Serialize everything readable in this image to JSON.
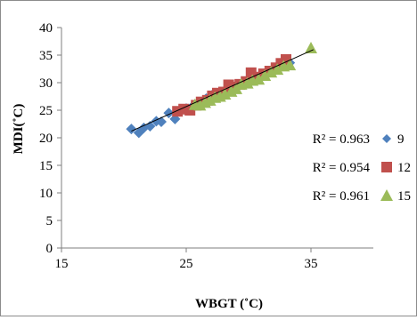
{
  "chart_data": {
    "type": "scatter",
    "xlabel": "WBGT (˚C)",
    "ylabel": "MDI(˚C)",
    "xlim": [
      15,
      40
    ],
    "ylim": [
      0,
      40
    ],
    "x_ticks": [
      "15",
      "25",
      "35"
    ],
    "x_tick_values": [
      15,
      25,
      35
    ],
    "y_ticks": [
      "0",
      "5",
      "10",
      "15",
      "20",
      "25",
      "30",
      "35",
      "40"
    ],
    "y_tick_values": [
      0,
      5,
      10,
      15,
      20,
      25,
      30,
      35,
      40
    ],
    "grid": false,
    "legend_position": "right",
    "trendline": {
      "x": [
        20.6,
        35.2
      ],
      "y": [
        21.2,
        36.0
      ],
      "color": "#000000"
    },
    "series": [
      {
        "name": "9",
        "marker": "diamond",
        "color": "#4f81bd",
        "r2_label": "R² = 0.963",
        "points": [
          [
            20.6,
            21.6
          ],
          [
            21.2,
            20.9
          ],
          [
            21.6,
            21.8
          ],
          [
            22.1,
            22.1
          ],
          [
            22.6,
            23.0
          ],
          [
            23.0,
            22.9
          ],
          [
            23.6,
            24.5
          ],
          [
            24.1,
            23.4
          ],
          [
            24.6,
            25.0
          ],
          [
            25.0,
            25.3
          ],
          [
            25.5,
            25.7
          ],
          [
            26.0,
            26.2
          ],
          [
            26.6,
            27.1
          ],
          [
            27.1,
            27.8
          ],
          [
            27.6,
            27.6
          ],
          [
            28.2,
            28.6
          ],
          [
            28.7,
            29.0
          ],
          [
            29.3,
            29.6
          ],
          [
            29.8,
            30.1
          ],
          [
            30.4,
            30.8
          ],
          [
            31.0,
            31.3
          ],
          [
            31.6,
            31.9
          ],
          [
            32.2,
            32.4
          ],
          [
            32.8,
            33.1
          ],
          [
            33.3,
            33.6
          ]
        ]
      },
      {
        "name": "12",
        "marker": "square",
        "color": "#c0504d",
        "r2_label": "R² = 0.954",
        "points": [
          [
            24.3,
            24.8
          ],
          [
            24.8,
            25.2
          ],
          [
            25.3,
            25.0
          ],
          [
            25.8,
            25.9
          ],
          [
            26.2,
            26.5
          ],
          [
            26.7,
            26.8
          ],
          [
            27.1,
            27.6
          ],
          [
            27.5,
            28.1
          ],
          [
            28.0,
            28.3
          ],
          [
            28.4,
            29.6
          ],
          [
            28.8,
            29.2
          ],
          [
            29.3,
            29.7
          ],
          [
            29.8,
            30.2
          ],
          [
            30.2,
            31.8
          ],
          [
            30.7,
            31.0
          ],
          [
            31.2,
            31.6
          ],
          [
            31.7,
            32.1
          ],
          [
            32.2,
            32.7
          ],
          [
            32.6,
            33.5
          ],
          [
            33.0,
            34.2
          ]
        ]
      },
      {
        "name": "15",
        "marker": "triangle",
        "color": "#9bbb59",
        "r2_label": "R² = 0.961",
        "points": [
          [
            25.7,
            26.0
          ],
          [
            26.1,
            25.9
          ],
          [
            26.5,
            26.4
          ],
          [
            26.9,
            26.8
          ],
          [
            27.3,
            27.3
          ],
          [
            27.7,
            27.5
          ],
          [
            28.1,
            27.9
          ],
          [
            28.6,
            28.4
          ],
          [
            29.0,
            28.9
          ],
          [
            29.4,
            29.7
          ],
          [
            29.9,
            29.9
          ],
          [
            30.3,
            30.4
          ],
          [
            30.8,
            30.6
          ],
          [
            31.3,
            31.3
          ],
          [
            31.8,
            31.9
          ],
          [
            32.3,
            32.4
          ],
          [
            32.8,
            33.0
          ],
          [
            33.3,
            33.2
          ],
          [
            35.0,
            36.3
          ]
        ]
      }
    ]
  }
}
